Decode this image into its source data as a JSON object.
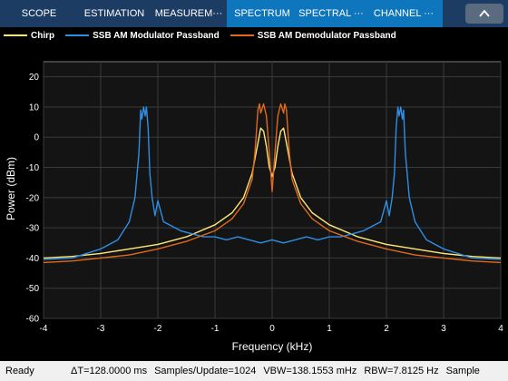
{
  "tabs": [
    {
      "label": "SCOPE"
    },
    {
      "label": "ESTIMATION"
    },
    {
      "label": "MEASUREM···"
    },
    {
      "label": "SPECTRUM"
    },
    {
      "label": "SPECTRAL ···"
    },
    {
      "label": "CHANNEL ···"
    }
  ],
  "collapse_icon": "chevron-up-icon",
  "legend": [
    {
      "label": "Chirp",
      "color": "#ffe97a"
    },
    {
      "label": "SSB AM Modulator Passband",
      "color": "#2e8ee5"
    },
    {
      "label": "SSB AM Demodulator Passband",
      "color": "#e06a1c"
    }
  ],
  "status": {
    "ready": "Ready",
    "delta_t": "ΔT=128.0000 ms",
    "samples": "Samples/Update=1024",
    "vbw": "VBW=138.1553 mHz",
    "rbw": "RBW=7.8125 Hz",
    "sample": "Sample"
  },
  "chart_data": {
    "type": "line",
    "xlabel": "Frequency (kHz)",
    "ylabel": "Power (dBm)",
    "xlim": [
      -4,
      4
    ],
    "ylim": [
      -60,
      25
    ],
    "xticks": [
      -4,
      -3,
      -2,
      -1,
      0,
      1,
      2,
      3,
      4
    ],
    "yticks": [
      20,
      10,
      0,
      -10,
      -20,
      -30,
      -40,
      -50,
      -60
    ],
    "grid": true,
    "series": [
      {
        "name": "Chirp",
        "color": "#ffe97a",
        "x": [
          -4,
          -3.5,
          -3,
          -2.5,
          -2,
          -1.5,
          -1,
          -0.7,
          -0.5,
          -0.35,
          -0.25,
          -0.2,
          -0.15,
          -0.1,
          -0.05,
          0,
          0.05,
          0.1,
          0.15,
          0.2,
          0.25,
          0.35,
          0.5,
          0.7,
          1,
          1.5,
          2,
          2.5,
          3,
          3.5,
          4
        ],
        "y": [
          -40,
          -39.5,
          -38.5,
          -37,
          -35.5,
          -33,
          -29,
          -25,
          -20,
          -12,
          -2,
          3,
          2,
          -3,
          -10,
          -13,
          -10,
          -3,
          2,
          3,
          -2,
          -12,
          -20,
          -25,
          -29,
          -33,
          -35.5,
          -37,
          -38.5,
          -39.5,
          -40
        ]
      },
      {
        "name": "SSB AM Modulator Passband",
        "color": "#2e8ee5",
        "x": [
          -4,
          -3.5,
          -3,
          -2.7,
          -2.5,
          -2.4,
          -2.33,
          -2.3,
          -2.28,
          -2.25,
          -2.22,
          -2.2,
          -2.17,
          -2.14,
          -2.1,
          -2.05,
          -2.0,
          -1.9,
          -1.8,
          -1.6,
          -1.4,
          -1.2,
          -1.0,
          -0.8,
          -0.6,
          -0.4,
          -0.2,
          0,
          0.2,
          0.4,
          0.6,
          0.8,
          1.0,
          1.2,
          1.4,
          1.6,
          1.8,
          1.9,
          2.0,
          2.05,
          2.1,
          2.14,
          2.17,
          2.2,
          2.22,
          2.25,
          2.28,
          2.3,
          2.33,
          2.4,
          2.5,
          2.7,
          3,
          3.5,
          4
        ],
        "y": [
          -40.5,
          -40,
          -37,
          -34,
          -28,
          -20,
          -5,
          9,
          6,
          10,
          7,
          10,
          3,
          -12,
          -20,
          -26,
          -21,
          -28,
          -29,
          -31,
          -32,
          -33,
          -33,
          -34,
          -33,
          -34,
          -35,
          -34,
          -35,
          -34,
          -33,
          -34,
          -33,
          -33,
          -32,
          -31,
          -29,
          -28,
          -21,
          -26,
          -20,
          -12,
          3,
          10,
          7,
          10,
          6,
          9,
          -5,
          -20,
          -28,
          -34,
          -37,
          -40,
          -40.5
        ]
      },
      {
        "name": "SSB AM Demodulator Passband",
        "color": "#e06a1c",
        "x": [
          -4,
          -3.5,
          -3,
          -2.5,
          -2,
          -1.5,
          -1,
          -0.7,
          -0.5,
          -0.35,
          -0.3,
          -0.25,
          -0.22,
          -0.2,
          -0.15,
          -0.1,
          -0.05,
          0,
          0.05,
          0.1,
          0.15,
          0.2,
          0.22,
          0.25,
          0.3,
          0.35,
          0.5,
          0.7,
          1,
          1.5,
          2,
          2.5,
          3,
          3.5,
          4
        ],
        "y": [
          -41.5,
          -41,
          -40,
          -39,
          -37,
          -34.5,
          -31,
          -27,
          -22,
          -14,
          -5,
          9,
          11,
          8,
          11,
          7,
          -5,
          -18,
          -5,
          7,
          11,
          8,
          11,
          9,
          -5,
          -14,
          -22,
          -27,
          -31,
          -34.5,
          -37,
          -39,
          -40,
          -41,
          -41.5
        ]
      }
    ]
  }
}
